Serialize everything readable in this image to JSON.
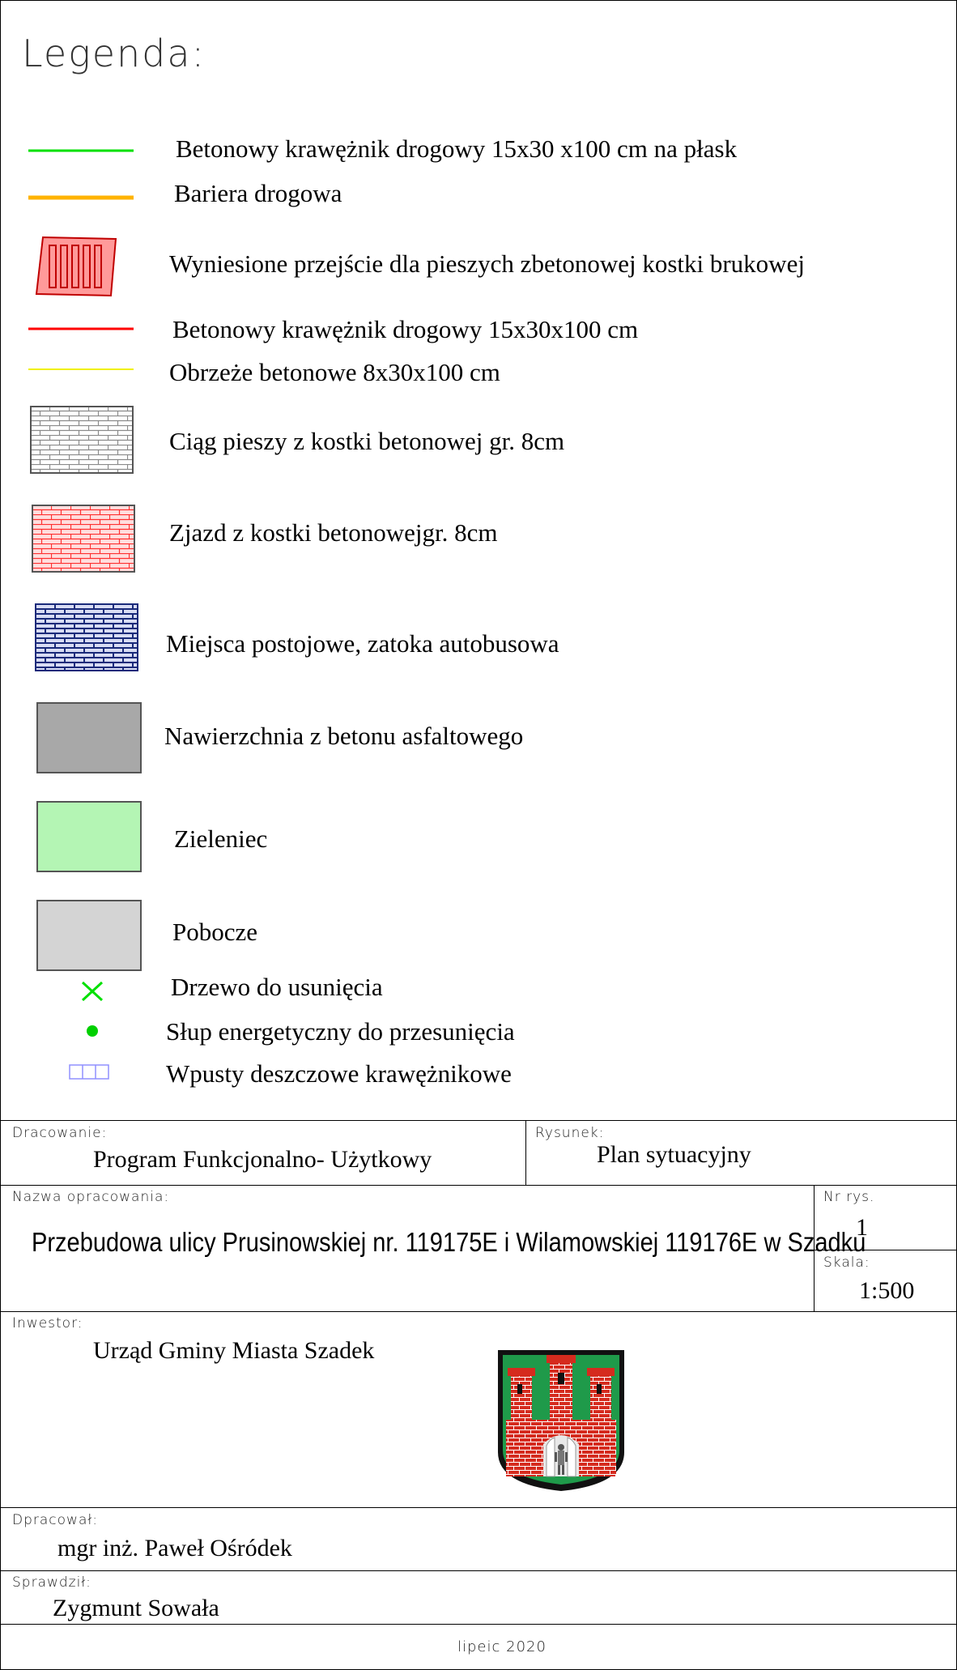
{
  "legend": {
    "title": "Legenda:",
    "items": [
      {
        "label": "Betonowy krawężnik drogowy 15x30 x100 cm na płask",
        "icon": "green-line-icon",
        "color": "#00e000"
      },
      {
        "label": "Bariera drogowa",
        "icon": "orange-line-icon",
        "color": "#ffb300"
      },
      {
        "label": "Wyniesione przejście dla pieszych zbetonowej kostki brukowej",
        "icon": "crosswalk-icon",
        "color": "#ff0000"
      },
      {
        "label": "Betonowy krawężnik drogowy 15x30x100 cm",
        "icon": "red-line-icon",
        "color": "#ff0000"
      },
      {
        "label": "Obrzeże betonowe 8x30x100 cm",
        "icon": "yellow-line-icon",
        "color": "#f0f000"
      },
      {
        "label": "Ciąg pieszy z kostki betonowej gr. 8cm",
        "icon": "gray-paving-icon",
        "color": "#8a8a8a"
      },
      {
        "label": "Zjazd z  kostki betonowejgr. 8cm",
        "icon": "red-paving-icon",
        "color": "#ff3030"
      },
      {
        "label": "Miejsca postojowe, zatoka autobusowa",
        "icon": "blue-paving-icon",
        "color": "#1a2a7a"
      },
      {
        "label": "Nawierzchnia z betonu asfaltowego",
        "icon": "asphalt-swatch-icon",
        "color": "#a8a8a8"
      },
      {
        "label": "Zieleniec",
        "icon": "green-swatch-icon",
        "color": "#b4f5b4"
      },
      {
        "label": "Pobocze",
        "icon": "verge-swatch-icon",
        "color": "#d4d4d4"
      },
      {
        "label": "Drzewo do usunięcia",
        "icon": "x-mark-icon",
        "color": "#00e000"
      },
      {
        "label": "Słup energetyczny do przesunięcia",
        "icon": "dot-icon",
        "color": "#00d000"
      },
      {
        "label": "Wpusty deszczowe krawężnikowe",
        "icon": "drain-icon",
        "color": "#9090ff"
      }
    ]
  },
  "titleblock": {
    "opracowanie_cap": "Dracowanie:",
    "opracowanie_val": "Program Funkcjonalno- Użytkowy",
    "rysunek_cap": "Rysunek:",
    "rysunek_val": "Plan sytuacyjny",
    "nazwa_cap": "Nazwa opracowania:",
    "nazwa_val": "Przebudowa ulicy  Prusinowskiej nr. 119175E i Wilamowskiej 119176E w Szadku",
    "nrrys_cap": "Nr rys.",
    "nrrys_val": "1",
    "skala_cap": "Skala:",
    "skala_val": "1:500",
    "inwestor_cap": "Inwestor:",
    "inwestor_val": "Urząd Gminy Miasta Szadek",
    "opracowal_cap": "Dpracował:",
    "opracowal_val": "mgr inż. Paweł Ośródek",
    "sprawdzil_cap": "Sprawdził:",
    "sprawdzil_val": "Zygmunt Sowała",
    "date": "lipeic 2020"
  }
}
